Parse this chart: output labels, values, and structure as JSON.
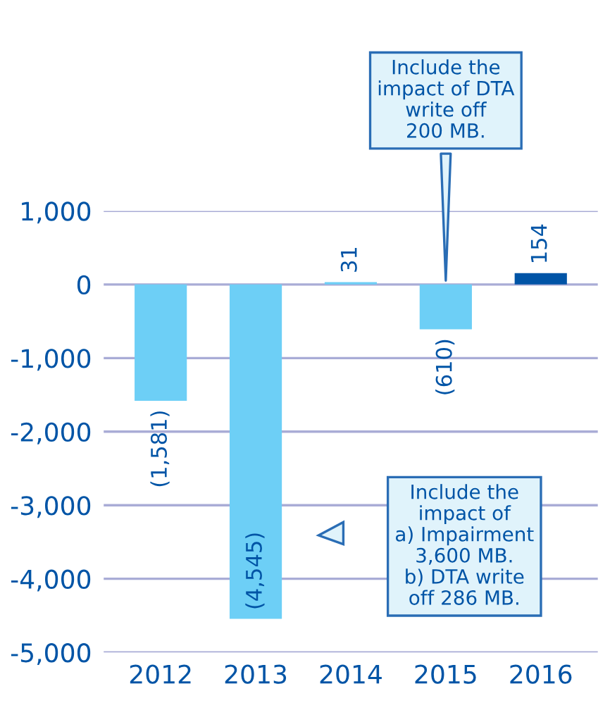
{
  "chart_data": {
    "type": "bar",
    "categories": [
      "2012",
      "2013",
      "2014",
      "2015",
      "2016"
    ],
    "values": [
      -1581,
      -4545,
      31,
      -610,
      154
    ],
    "colors": [
      "#6dcff6",
      "#6dcff6",
      "#6dcff6",
      "#6dcff6",
      "#0054a6"
    ],
    "value_labels": [
      "(1,581)",
      "(4,545)",
      "31",
      "(610)",
      "154"
    ],
    "ylim": [
      -5000,
      1000
    ],
    "yticks": [
      {
        "value": 1000,
        "label": "1,000"
      },
      0,
      {
        "value": -1000,
        "label": "-1,000"
      },
      {
        "value": -2000,
        "label": "-2,000"
      },
      {
        "value": -3000,
        "label": "-3,000"
      },
      {
        "value": -4000,
        "label": "-4,000"
      },
      {
        "value": -5000,
        "label": "-5,000"
      }
    ],
    "grid": "y",
    "annotations": [
      {
        "text": "Include the\nimpact of DTA\nwrite off\n200 MB.",
        "x": "2015",
        "y": 0
      },
      "Include the\nimpact of\na) Impairment\n3,600 MB.\nb) DTA write\noff 286 MB."
    ]
  }
}
